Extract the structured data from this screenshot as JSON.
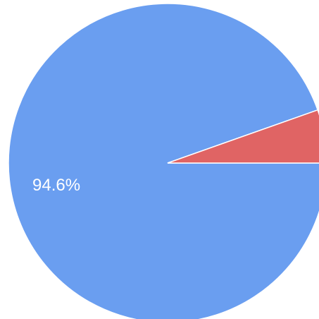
{
  "chart_data": {
    "type": "pie",
    "slices": [
      {
        "value": 94.6,
        "label": "94.6%",
        "color": "#6a9ef0"
      },
      {
        "value": 5.4,
        "label": "",
        "color": "#e06464"
      }
    ],
    "start_angle_deg": 0,
    "direction": "counterclockwise_from_right_for_small_slice",
    "slice_border_color": "#ffffff"
  }
}
